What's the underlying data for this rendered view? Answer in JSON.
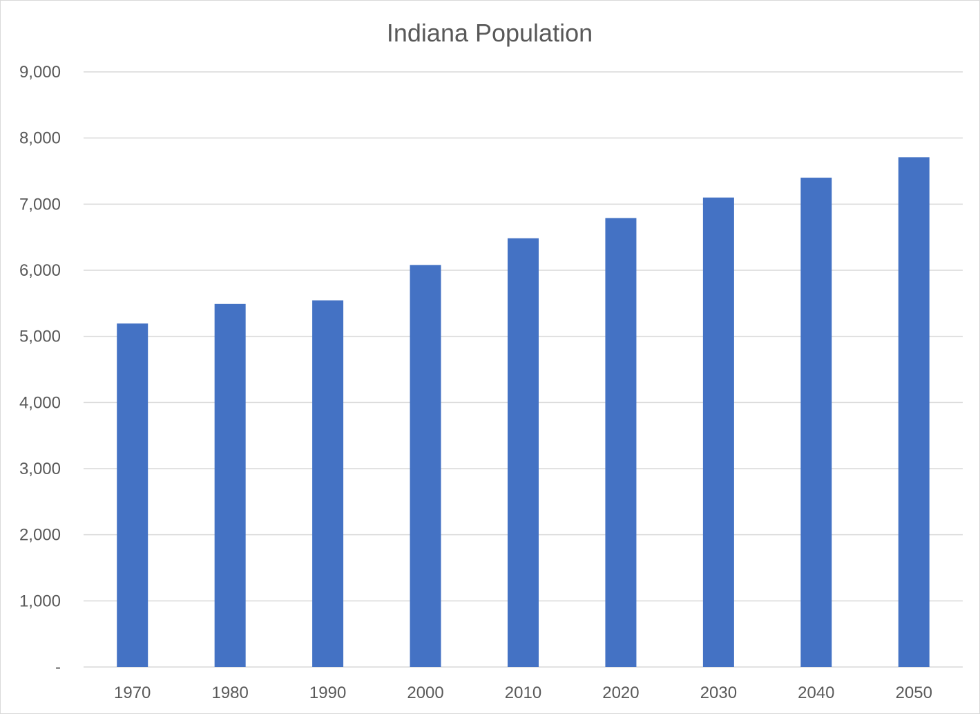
{
  "chart_data": {
    "type": "bar",
    "title": "Indiana Population",
    "xlabel": "",
    "ylabel": "",
    "categories": [
      "1970",
      "1980",
      "1990",
      "2000",
      "2010",
      "2020",
      "2030",
      "2040",
      "2050"
    ],
    "values": [
      5195,
      5490,
      5545,
      6080,
      6484,
      6790,
      7100,
      7400,
      7710
    ],
    "ylim": [
      0,
      9000
    ],
    "ytick_values": [
      0,
      1000,
      2000,
      3000,
      4000,
      5000,
      6000,
      7000,
      8000,
      9000
    ],
    "ytick_labels": [
      "-",
      "1,000",
      "2,000",
      "3,000",
      "4,000",
      "5,000",
      "6,000",
      "7,000",
      "8,000",
      "9,000"
    ],
    "bar_color": "#4472c4",
    "grid": true,
    "legend": "none"
  }
}
